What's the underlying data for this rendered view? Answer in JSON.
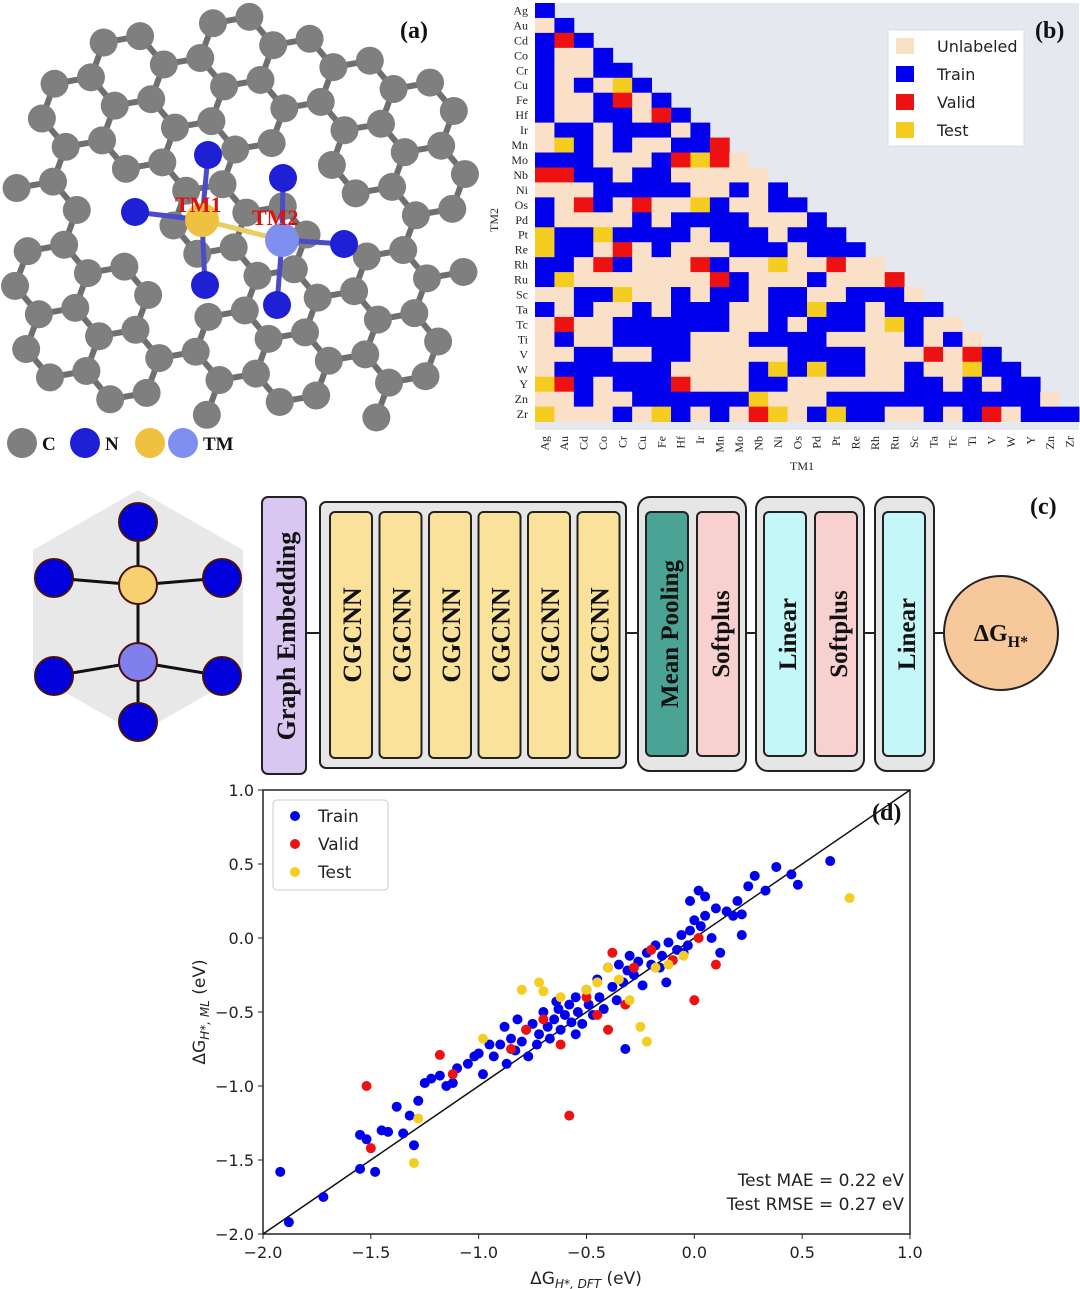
{
  "panel_a": {
    "label": "(a)",
    "atom_labels": {
      "tm1": "TM1",
      "tm2": "TM2"
    },
    "legend": [
      {
        "symbol": "C",
        "color": "#7f7f7f"
      },
      {
        "symbol": "N",
        "color": "#1f1fd6"
      },
      {
        "symbol": "",
        "color": "#f0c040"
      },
      {
        "symbol": "TM",
        "color": "#7f8ff0"
      }
    ]
  },
  "panel_b": {
    "label": "(b)",
    "xlabel": "TM1",
    "ylabel": "TM2",
    "elements": [
      "Ag",
      "Au",
      "Cd",
      "Co",
      "Cr",
      "Cu",
      "Fe",
      "Hf",
      "Ir",
      "Mn",
      "Mo",
      "Nb",
      "Ni",
      "Os",
      "Pd",
      "Pt",
      "Re",
      "Rh",
      "Ru",
      "Sc",
      "Ta",
      "Tc",
      "Ti",
      "V",
      "W",
      "Y",
      "Zn",
      "Zr"
    ],
    "legend": [
      {
        "label": "Unlabeled",
        "color": "#fbe0c8"
      },
      {
        "label": "Train",
        "color": "#0000ee"
      },
      {
        "label": "Valid",
        "color": "#ee1111"
      },
      {
        "label": "Test",
        "color": "#f5cc20"
      }
    ],
    "background_color": "#e6e8f0"
  },
  "panel_c": {
    "label": "(c)",
    "blocks": {
      "embedding": "Graph Embedding",
      "cgcnn": [
        "CGCNN",
        "CGCNN",
        "CGCNN",
        "CGCNN",
        "CGCNN",
        "CGCNN"
      ],
      "pool": [
        "Mean Pooling",
        "Softplus"
      ],
      "mlp": [
        "Linear",
        "Softplus"
      ],
      "out": [
        "Linear"
      ]
    },
    "output": "ΔG",
    "output_sub": "H*",
    "colors": {
      "embedding": "#d9c7f2",
      "cgcnn": "#fbe29a",
      "pool": "#4aa394",
      "softplus": "#f9d0d0",
      "linear": "#c4f7f7",
      "output": "#f7c89a"
    }
  },
  "panel_d": {
    "label": "(d)",
    "ylabel_main": "ΔG",
    "ylabel_sub": "H*, ML",
    "ylabel_unit": " (eV)",
    "xlabel_main": "ΔG",
    "xlabel_sub": "H*, DFT",
    "xlabel_unit": " (eV)",
    "annotation": [
      "Test MAE = 0.22 eV",
      "Test RMSE = 0.27 eV"
    ],
    "xticks": [
      "−2.0",
      "−1.5",
      "−1.0",
      "−0.5",
      "0.0",
      "0.5",
      "1.0"
    ],
    "yticks": [
      "−2.0",
      "−1.5",
      "−1.0",
      "−0.5",
      "0.0",
      "0.5",
      "1.0"
    ]
  },
  "chart_data": {
    "type": "scatter",
    "xlabel": "ΔG H*, DFT (eV)",
    "ylabel": "ΔG H*, ML (eV)",
    "xlim": [
      -2.0,
      1.0
    ],
    "ylim": [
      -2.0,
      1.0
    ],
    "legend_position": "top-left",
    "series": [
      {
        "name": "Train",
        "color": "#0000ee",
        "points": [
          [
            -1.92,
            -1.58
          ],
          [
            -1.88,
            -1.92
          ],
          [
            -1.72,
            -1.75
          ],
          [
            -1.55,
            -1.33
          ],
          [
            -1.55,
            -1.56
          ],
          [
            -1.52,
            -1.36
          ],
          [
            -1.48,
            -1.58
          ],
          [
            -1.45,
            -1.3
          ],
          [
            -1.42,
            -1.31
          ],
          [
            -1.38,
            -1.14
          ],
          [
            -1.35,
            -1.32
          ],
          [
            -1.32,
            -1.2
          ],
          [
            -1.3,
            -1.4
          ],
          [
            -1.28,
            -1.1
          ],
          [
            -1.25,
            -0.98
          ],
          [
            -1.22,
            -0.95
          ],
          [
            -1.18,
            -0.93
          ],
          [
            -1.15,
            -1.0
          ],
          [
            -1.12,
            -0.98
          ],
          [
            -1.1,
            -0.88
          ],
          [
            -1.05,
            -0.85
          ],
          [
            -1.02,
            -0.8
          ],
          [
            -1.0,
            -0.78
          ],
          [
            -0.98,
            -0.92
          ],
          [
            -0.95,
            -0.72
          ],
          [
            -0.93,
            -0.8
          ],
          [
            -0.9,
            -0.72
          ],
          [
            -0.88,
            -0.6
          ],
          [
            -0.87,
            -0.85
          ],
          [
            -0.85,
            -0.68
          ],
          [
            -0.83,
            -0.76
          ],
          [
            -0.82,
            -0.55
          ],
          [
            -0.8,
            -0.7
          ],
          [
            -0.78,
            -0.62
          ],
          [
            -0.77,
            -0.8
          ],
          [
            -0.75,
            -0.58
          ],
          [
            -0.73,
            -0.72
          ],
          [
            -0.72,
            -0.65
          ],
          [
            -0.7,
            -0.5
          ],
          [
            -0.68,
            -0.6
          ],
          [
            -0.67,
            -0.68
          ],
          [
            -0.65,
            -0.55
          ],
          [
            -0.63,
            -0.48
          ],
          [
            -0.62,
            -0.62
          ],
          [
            -0.6,
            -0.52
          ],
          [
            -0.58,
            -0.45
          ],
          [
            -0.57,
            -0.57
          ],
          [
            -0.55,
            -0.4
          ],
          [
            -0.54,
            -0.5
          ],
          [
            -0.52,
            -0.58
          ],
          [
            -0.5,
            -0.35
          ],
          [
            -0.49,
            -0.45
          ],
          [
            -0.47,
            -0.52
          ],
          [
            -0.45,
            -0.28
          ],
          [
            -0.44,
            -0.4
          ],
          [
            -0.42,
            -0.48
          ],
          [
            -0.4,
            -0.2
          ],
          [
            -0.38,
            -0.33
          ],
          [
            -0.36,
            -0.42
          ],
          [
            -0.35,
            -0.18
          ],
          [
            -0.33,
            -0.3
          ],
          [
            -0.31,
            -0.22
          ],
          [
            -0.3,
            -0.12
          ],
          [
            -0.28,
            -0.25
          ],
          [
            -0.26,
            -0.16
          ],
          [
            -0.24,
            -0.32
          ],
          [
            -0.22,
            -0.1
          ],
          [
            -0.2,
            -0.18
          ],
          [
            -0.18,
            -0.05
          ],
          [
            -0.16,
            -0.2
          ],
          [
            -0.15,
            -0.12
          ],
          [
            -0.13,
            -0.3
          ],
          [
            -0.12,
            -0.03
          ],
          [
            -0.1,
            -0.15
          ],
          [
            -0.08,
            -0.08
          ],
          [
            -0.06,
            0.02
          ],
          [
            -0.05,
            -0.1
          ],
          [
            -0.03,
            -0.05
          ],
          [
            -0.02,
            0.05
          ],
          [
            0.0,
            0.12
          ],
          [
            0.02,
            0.32
          ],
          [
            0.03,
            0.08
          ],
          [
            0.05,
            0.15
          ],
          [
            0.08,
            0.0
          ],
          [
            0.1,
            0.2
          ],
          [
            0.12,
            -0.1
          ],
          [
            0.15,
            0.18
          ],
          [
            0.18,
            0.15
          ],
          [
            0.2,
            0.25
          ],
          [
            0.22,
            0.02
          ],
          [
            0.25,
            0.35
          ],
          [
            0.28,
            0.42
          ],
          [
            0.33,
            0.32
          ],
          [
            0.38,
            0.48
          ],
          [
            0.45,
            0.43
          ],
          [
            0.48,
            0.36
          ],
          [
            0.63,
            0.52
          ],
          [
            -0.32,
            -0.75
          ],
          [
            -0.55,
            -0.65
          ],
          [
            -0.64,
            -0.43
          ],
          [
            -0.02,
            0.25
          ],
          [
            0.05,
            0.28
          ],
          [
            0.22,
            0.16
          ]
        ]
      },
      {
        "name": "Valid",
        "color": "#ee1111",
        "points": [
          [
            -1.52,
            -1.0
          ],
          [
            -1.5,
            -1.42
          ],
          [
            -1.18,
            -0.79
          ],
          [
            -1.12,
            -0.92
          ],
          [
            -0.85,
            -0.75
          ],
          [
            -0.78,
            -0.62
          ],
          [
            -0.7,
            -0.55
          ],
          [
            -0.62,
            -0.72
          ],
          [
            -0.58,
            -1.2
          ],
          [
            -0.5,
            -0.4
          ],
          [
            -0.45,
            -0.52
          ],
          [
            -0.4,
            -0.62
          ],
          [
            -0.38,
            -0.1
          ],
          [
            -0.32,
            -0.45
          ],
          [
            -0.28,
            -0.2
          ],
          [
            -0.2,
            -0.08
          ],
          [
            -0.1,
            -0.15
          ],
          [
            0.0,
            -0.42
          ],
          [
            0.02,
            0.0
          ],
          [
            0.1,
            -0.18
          ]
        ]
      },
      {
        "name": "Test",
        "color": "#f5cc20",
        "points": [
          [
            -1.3,
            -1.52
          ],
          [
            -1.28,
            -1.22
          ],
          [
            -0.98,
            -0.68
          ],
          [
            -0.8,
            -0.35
          ],
          [
            -0.72,
            -0.3
          ],
          [
            -0.7,
            -0.36
          ],
          [
            -0.62,
            -0.4
          ],
          [
            -0.5,
            -0.35
          ],
          [
            -0.45,
            -0.3
          ],
          [
            -0.4,
            -0.2
          ],
          [
            -0.35,
            -0.28
          ],
          [
            -0.3,
            -0.42
          ],
          [
            -0.25,
            -0.6
          ],
          [
            -0.22,
            -0.7
          ],
          [
            -0.18,
            -0.2
          ],
          [
            -0.12,
            -0.18
          ],
          [
            -0.05,
            -0.12
          ],
          [
            0.72,
            0.27
          ]
        ]
      }
    ]
  }
}
